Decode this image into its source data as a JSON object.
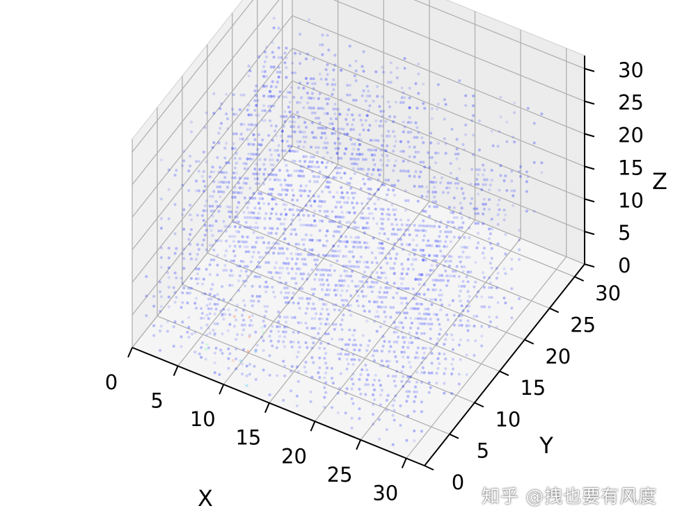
{
  "chart_data": {
    "type": "scatter",
    "projection": "3d",
    "title": "",
    "xlabel": "X",
    "ylabel": "Y",
    "zlabel": "Z",
    "xlim": [
      0,
      32
    ],
    "ylim": [
      0,
      32
    ],
    "zlim": [
      0,
      32
    ],
    "xticks": [
      "0",
      "5",
      "10",
      "15",
      "20",
      "25",
      "30"
    ],
    "yticks": [
      "0",
      "5",
      "10",
      "15",
      "20",
      "25",
      "30"
    ],
    "zticks": [
      "0",
      "5",
      "10",
      "15",
      "20",
      "25",
      "30"
    ],
    "grid": true,
    "pane_color": "#f2f2f2",
    "grid_color": "#b0b0b0",
    "point_color": "#1a2bff",
    "secondary_colors": [
      "#33c0ff",
      "#66ff99",
      "#ff6633"
    ],
    "series": [
      {
        "description_of_clusters": "dense voxel grid of points",
        "clusters": [
          {
            "x": [
              1,
              30
            ],
            "y": [
              1,
              24
            ],
            "z": [
              0,
              11
            ],
            "density": 0.9
          },
          {
            "x": [
              1,
              30
            ],
            "y": [
              4,
              28
            ],
            "z": [
              12,
              26
            ],
            "density": 0.55
          },
          {
            "x": [
              4,
              20
            ],
            "y": [
              10,
              24
            ],
            "z": [
              18,
              30
            ],
            "density": 0.45
          },
          {
            "x": [
              6,
              12
            ],
            "y": [
              1,
              8
            ],
            "z": [
              0,
              7
            ],
            "density": 0.5,
            "accent": true
          }
        ]
      }
    ]
  },
  "watermark": "知乎 @拽也要有风度"
}
